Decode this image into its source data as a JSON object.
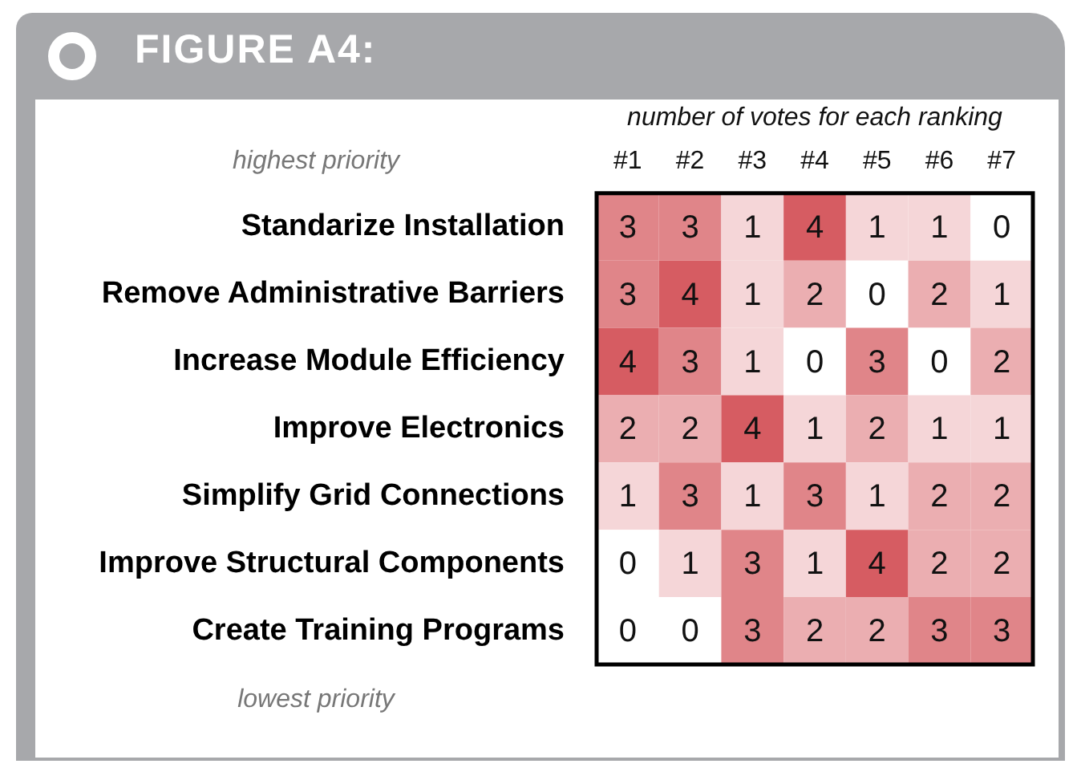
{
  "chart_data": {
    "type": "heatmap",
    "title": "FIGURE A4:",
    "xlabel": "number of votes for each ranking",
    "categories": [
      "#1",
      "#2",
      "#3",
      "#4",
      "#5",
      "#6",
      "#7"
    ],
    "y_categories": [
      "Standarize Installation",
      "Remove Administrative Barriers",
      "Increase Module Efficiency",
      "Improve Electronics",
      "Simplify Grid Connections",
      "Improve Structural Components",
      "Create Training Programs"
    ],
    "cells": [
      [
        3,
        3,
        1,
        4,
        1,
        1,
        0
      ],
      [
        3,
        4,
        1,
        2,
        0,
        2,
        1
      ],
      [
        4,
        3,
        1,
        0,
        3,
        0,
        2
      ],
      [
        2,
        2,
        4,
        1,
        2,
        1,
        1
      ],
      [
        1,
        3,
        1,
        3,
        1,
        2,
        2
      ],
      [
        0,
        1,
        3,
        1,
        4,
        2,
        2
      ],
      [
        0,
        0,
        3,
        2,
        2,
        3,
        3
      ]
    ],
    "annotations": [
      "highest priority",
      "lowest priority"
    ],
    "data_labels": true
  }
}
